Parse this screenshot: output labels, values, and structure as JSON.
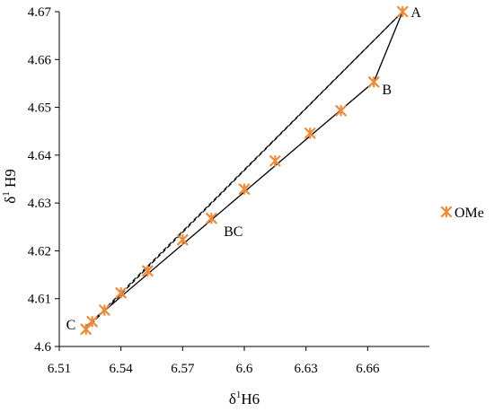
{
  "chart_data": {
    "type": "scatter",
    "xlabel": {
      "prefix": "δ",
      "sup": "1",
      "rest": "H6"
    },
    "ylabel": {
      "prefix": "δ",
      "sup": "1",
      "rest": " H9"
    },
    "xlim": [
      6.51,
      6.69
    ],
    "ylim": [
      4.6,
      4.67
    ],
    "xticks": [
      "6.51",
      "6.54",
      "6.57",
      "6.6",
      "6.63",
      "6.66"
    ],
    "yticks": [
      "4.6",
      "4.61",
      "4.62",
      "4.63",
      "4.64",
      "4.65",
      "4.66",
      "4.67"
    ],
    "grid": false,
    "legend": {
      "position": "right",
      "entries": [
        "OMe"
      ]
    },
    "marker_color": "#ed8b3a",
    "series": [
      {
        "name": "OMe",
        "x": [
          6.523,
          6.526,
          6.532,
          6.54,
          6.553,
          6.57,
          6.584,
          6.6,
          6.615,
          6.632,
          6.647,
          6.663,
          6.677
        ],
        "y": [
          4.6036,
          4.6052,
          4.6076,
          4.6112,
          4.6158,
          4.6223,
          4.6268,
          4.6329,
          4.6388,
          4.6446,
          4.6493,
          4.6553,
          4.67
        ]
      }
    ],
    "lines": [
      {
        "style": "solid",
        "x": [
          6.523,
          6.663,
          6.677
        ],
        "y": [
          4.6042,
          4.6553,
          4.67
        ]
      },
      {
        "style": "dashed",
        "x": [
          6.523,
          6.677
        ],
        "y": [
          4.6036,
          4.67
        ]
      },
      {
        "style": "dashed",
        "x": [
          6.526,
          6.677
        ],
        "y": [
          4.6052,
          4.67
        ]
      }
    ],
    "annotations": [
      {
        "text": "A",
        "x": 6.681,
        "y": 4.6698,
        "anchor": "start"
      },
      {
        "text": "B",
        "x": 6.667,
        "y": 4.6537,
        "anchor": "start"
      },
      {
        "text": "BC",
        "x": 6.59,
        "y": 4.624,
        "anchor": "start"
      },
      {
        "text": "C",
        "x": 6.518,
        "y": 4.6045,
        "anchor": "end"
      }
    ]
  }
}
